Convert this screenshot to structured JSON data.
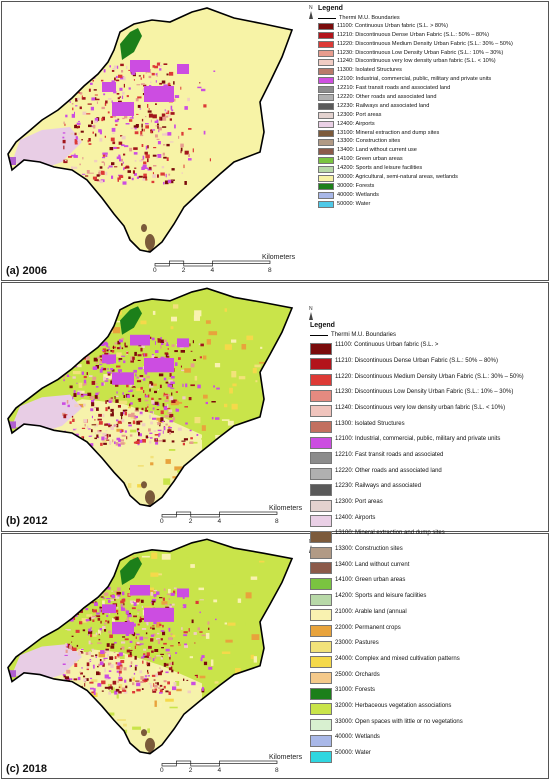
{
  "panels": [
    {
      "label": "(a) 2006"
    },
    {
      "label": "(b) 2012"
    },
    {
      "label": "(c) 2018"
    }
  ],
  "scale": {
    "unit": "Kilometers",
    "ticks": [
      "0",
      "2",
      "4",
      "8"
    ]
  },
  "north": "N",
  "legend_title": "Legend",
  "colors": {
    "boundary": "#000000",
    "agri_2006": "#f7f3a6",
    "herbaceous": "#c9e44a",
    "arable": "#f9f2b0",
    "urban_dense": "#a1161b",
    "industrial": "#cc4de1",
    "airport": "#e8cde5",
    "forest": "#1c7f1a",
    "mineral": "#7a5a3a"
  },
  "legend_a": [
    {
      "code": "boundary",
      "color": "#000000",
      "text": "Thermi M.U. Boundaries"
    },
    {
      "code": "11100",
      "color": "#7a0b0b",
      "text": "11100: Continuous Urban fabric (S.L. > 80%)"
    },
    {
      "code": "11210",
      "color": "#b3141b",
      "text": "11210: Discontinuous Dense Urban Fabric (S.L.: 50% – 80%)"
    },
    {
      "code": "11220",
      "color": "#dd3a36",
      "text": "11220: Discontinuous Medium Density Urban Fabric (S.L.: 30% – 50%)"
    },
    {
      "code": "11230",
      "color": "#e79c8e",
      "text": "11230: Discontinuous Low Density Urban Fabric (S.L.: 10% – 30%)"
    },
    {
      "code": "11240",
      "color": "#f1cdc4",
      "text": "11240: Discontinuous very low density urban fabric (S.L. < 10%)"
    },
    {
      "code": "11300",
      "color": "#b97a6a",
      "text": "11300: Isolated Structures"
    },
    {
      "code": "12100",
      "color": "#cf4fe0",
      "text": "12100: Industrial, commercial, public, military and private units"
    },
    {
      "code": "12210",
      "color": "#8c8c8c",
      "text": "12210: Fast transit roads and associated land"
    },
    {
      "code": "12220",
      "color": "#b0b0b0",
      "text": "12220: Other roads and associated land"
    },
    {
      "code": "12230",
      "color": "#5a5a5a",
      "text": "12230: Railways and associated land"
    },
    {
      "code": "12300",
      "color": "#e3d2cf",
      "text": "12300: Port areas"
    },
    {
      "code": "12400",
      "color": "#ead0e6",
      "text": "12400: Airports"
    },
    {
      "code": "13100",
      "color": "#7c5a3b",
      "text": "13100: Mineral extraction and dump sites"
    },
    {
      "code": "13300",
      "color": "#b19a85",
      "text": "13300: Construction sites"
    },
    {
      "code": "13400",
      "color": "#8c5a4a",
      "text": "13400: Land without current use"
    },
    {
      "code": "14100",
      "color": "#7ac440",
      "text": "14100: Green urban areas"
    },
    {
      "code": "14200",
      "color": "#b8d9a8",
      "text": "14200: Sports and leisure facilities"
    },
    {
      "code": "20000",
      "color": "#f7f3a6",
      "text": "20000: Agricultural, semi-natural areas, wetlands"
    },
    {
      "code": "30000",
      "color": "#1c7f1a",
      "text": "30000: Forests"
    },
    {
      "code": "40000",
      "color": "#a9b8e8",
      "text": "40000: Wetlands"
    },
    {
      "code": "50000",
      "color": "#4fc9e8",
      "text": "50000: Water"
    }
  ],
  "legend_bc": [
    {
      "code": "boundary",
      "color": "#000000",
      "text": "Thermi M.U. Boundaries"
    },
    {
      "code": "11100",
      "color": "#7a0b0b",
      "text": "11100: Continuous Urban fabric (S.L. >"
    },
    {
      "code": "11210",
      "color": "#b3141b",
      "text": "11210: Discontinuous Dense Urban Fabric (S.L.: 50% – 80%)"
    },
    {
      "code": "11220",
      "color": "#dd3a36",
      "text": "11220: Discontinuous Medium Density Urban Fabric (S.L.: 30% – 50%)"
    },
    {
      "code": "11230",
      "color": "#e58a80",
      "text": "11230: Discontinuous Low Density Urban Fabric (S.L.: 10% – 30%)"
    },
    {
      "code": "11240",
      "color": "#f0c4bd",
      "text": "11240: Discontinuous very low density urban fabric (S.L. < 10%)"
    },
    {
      "code": "11300",
      "color": "#c27060",
      "text": "11300: Isolated Structures"
    },
    {
      "code": "12100",
      "color": "#cc4de1",
      "text": "12100: Industrial, commercial, public, military and private units"
    },
    {
      "code": "12210",
      "color": "#8c8c8c",
      "text": "12210: Fast transit roads and associated"
    },
    {
      "code": "12220",
      "color": "#b0b0b0",
      "text": "12220: Other roads and associated land"
    },
    {
      "code": "12230",
      "color": "#5a5a5a",
      "text": "12230: Railways and associated"
    },
    {
      "code": "12300",
      "color": "#e3d2cf",
      "text": "12300: Port areas"
    },
    {
      "code": "12400",
      "color": "#ead0e6",
      "text": "12400: Airports"
    },
    {
      "code": "13100",
      "color": "#7c5a3b",
      "text": "13100: Mineral extraction and dump sites"
    },
    {
      "code": "13300",
      "color": "#b19a85",
      "text": "13300: Construction sites"
    },
    {
      "code": "13400",
      "color": "#8c5a4a",
      "text": "13400: Land without current"
    },
    {
      "code": "14100",
      "color": "#7ac440",
      "text": "14100: Green urban areas"
    },
    {
      "code": "14200",
      "color": "#b8d9a8",
      "text": "14200: Sports and leisure facilities"
    },
    {
      "code": "21000",
      "color": "#f9f2b0",
      "text": "21000: Arable land (annual"
    },
    {
      "code": "22000",
      "color": "#e8a33c",
      "text": "22000: Permanent crops"
    },
    {
      "code": "23000",
      "color": "#f2e27a",
      "text": "23000: Pastures"
    },
    {
      "code": "24000",
      "color": "#f5d94a",
      "text": "24000: Complex and mixed cultivation patterns"
    },
    {
      "code": "25000",
      "color": "#f4c98a",
      "text": "25000: Orchards"
    },
    {
      "code": "31000",
      "color": "#1c7f1a",
      "text": "31000: Forests"
    },
    {
      "code": "32000",
      "color": "#c9e44a",
      "text": "32000: Herbaceous vegetation associations"
    },
    {
      "code": "33000",
      "color": "#d8f0d0",
      "text": "33000: Open spaces with little or no vegetations"
    },
    {
      "code": "40000",
      "color": "#a9b8e8",
      "text": "40000: Wetlands"
    },
    {
      "code": "50000",
      "color": "#2fd6e0",
      "text": "50000: Water"
    }
  ]
}
